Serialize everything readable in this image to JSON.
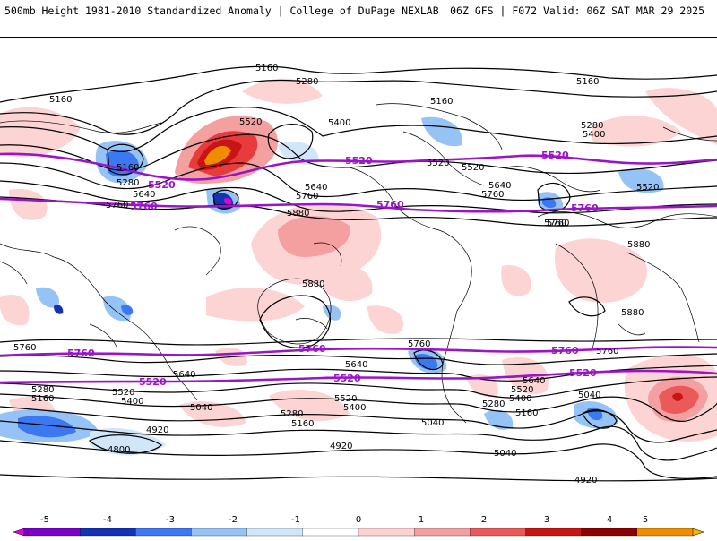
{
  "header": {
    "left_title": "500mb Height 1981-2010 Standardized Anomaly | College of DuPage NEXLAB",
    "right_title": "06Z GFS | F072 Valid: 06Z SAT MAR 29 2025"
  },
  "contour_labels": [
    "5160",
    "5280",
    "5160",
    "5160",
    "5280",
    "5520",
    "5400",
    "5160",
    "5280",
    "5400",
    "5520",
    "5640",
    "5640",
    "5760",
    "5760",
    "5520",
    "5640",
    "5760",
    "5760",
    "5880",
    "5880",
    "5880",
    "5880",
    "5760",
    "5640",
    "5520",
    "5400",
    "5280",
    "5160",
    "5040",
    "4920",
    "4800",
    "4920",
    "5040",
    "5160",
    "5280",
    "5400",
    "5520",
    "5640",
    "5760",
    "5760",
    "5640",
    "5520",
    "5400",
    "5280",
    "5160",
    "5040",
    "5040",
    "4920",
    "5160",
    "5520",
    "5760"
  ],
  "thick_contour_labels": {
    "c5520": "5520",
    "c5760": "5760"
  },
  "colorbar": {
    "ticks": [
      "-5",
      "-4",
      "-3",
      "-2",
      "-1",
      "0",
      "1",
      "2",
      "3",
      "4",
      "5"
    ],
    "colors": [
      "#e000e0",
      "#7a00c8",
      "#1432b4",
      "#3c78f0",
      "#96c3f5",
      "#d2e6fa",
      "#ffffff",
      "#ffd2d2",
      "#f5a0a0",
      "#eb5a5a",
      "#c81414",
      "#8c0000",
      "#f08c00",
      "#f5b400"
    ]
  }
}
